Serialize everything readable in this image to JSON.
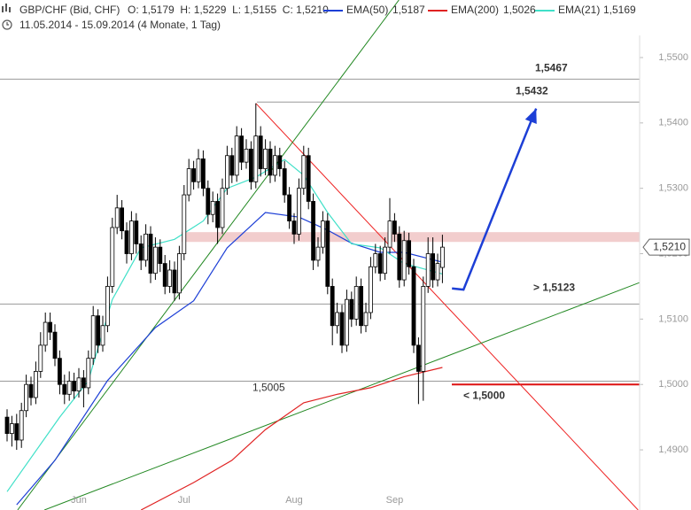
{
  "chart_data": {
    "type": "candlestick",
    "title": "GBP/CHF (Bid, CHF)",
    "quote": "O: 1,5179  H: 1,5229  L: 1,5155  C: 1,5210",
    "subtitle": "11.05.2014 - 15.09.2014 (4 Monate, 1 Tag)",
    "categories": [
      null,
      null,
      null,
      null,
      null,
      null,
      null,
      null,
      null,
      null,
      null,
      null,
      null,
      null,
      null,
      "Jun",
      null,
      null,
      null,
      null,
      null,
      null,
      null,
      null,
      null,
      null,
      null,
      null,
      null,
      null,
      null,
      null,
      null,
      null,
      null,
      null,
      null,
      "Jul",
      null,
      null,
      null,
      null,
      null,
      null,
      null,
      null,
      null,
      null,
      null,
      null,
      null,
      null,
      null,
      null,
      null,
      null,
      null,
      null,
      null,
      null,
      "Aug",
      null,
      null,
      null,
      null,
      null,
      null,
      null,
      null,
      null,
      null,
      null,
      null,
      null,
      null,
      null,
      null,
      null,
      null,
      null,
      null,
      "Sep",
      null,
      null,
      null,
      null,
      null,
      null,
      null,
      null,
      null,
      null
    ],
    "open": [
      1.495,
      1.4925,
      1.494,
      1.4915,
      1.496,
      1.5,
      1.498,
      1.502,
      1.506,
      1.5095,
      1.508,
      1.504,
      1.5,
      1.4985,
      1.5005,
      1.499,
      1.501,
      1.4995,
      1.504,
      1.5105,
      1.506,
      1.509,
      1.515,
      1.524,
      1.527,
      1.5235,
      1.52,
      1.525,
      1.5215,
      1.519,
      1.523,
      1.517,
      1.521,
      1.5185,
      1.515,
      1.5175,
      1.514,
      1.52,
      1.529,
      1.533,
      1.531,
      1.5345,
      1.53,
      1.526,
      1.528,
      1.524,
      1.53,
      1.535,
      1.532,
      1.538,
      1.534,
      1.536,
      1.531,
      1.538,
      1.533,
      1.536,
      1.532,
      1.535,
      1.533,
      1.529,
      1.525,
      1.523,
      1.53,
      1.535,
      1.528,
      1.519,
      1.521,
      1.525,
      1.515,
      1.509,
      1.511,
      1.506,
      1.513,
      1.51,
      1.515,
      1.509,
      1.511,
      1.518,
      1.52,
      1.517,
      1.521,
      1.525,
      1.523,
      1.516,
      1.522,
      1.518,
      1.506,
      1.502,
      1.515,
      1.52,
      1.516,
      1.5179
    ],
    "high": [
      1.4962,
      1.4952,
      1.4955,
      1.4972,
      1.5015,
      1.5012,
      1.5035,
      1.508,
      1.511,
      1.511,
      1.5092,
      1.5052,
      1.5015,
      1.502,
      1.5018,
      1.5025,
      1.5022,
      1.5052,
      1.512,
      1.5115,
      1.5105,
      1.5165,
      1.5255,
      1.529,
      1.5282,
      1.5248,
      1.5265,
      1.5262,
      1.5228,
      1.5245,
      1.5242,
      1.5225,
      1.5222,
      1.5198,
      1.519,
      1.5188,
      1.5212,
      1.5305,
      1.5345,
      1.5342,
      1.536,
      1.5358,
      1.5312,
      1.5295,
      1.5292,
      1.5315,
      1.5365,
      1.5362,
      1.5395,
      1.5392,
      1.5375,
      1.5372,
      1.543,
      1.5395,
      1.5375,
      1.5372,
      1.5365,
      1.5362,
      1.5342,
      1.5302,
      1.5262,
      1.5315,
      1.5365,
      1.5362,
      1.5292,
      1.5225,
      1.5265,
      1.5262,
      1.5162,
      1.5125,
      1.5122,
      1.5145,
      1.5142,
      1.5165,
      1.5162,
      1.5125,
      1.5195,
      1.5215,
      1.5212,
      1.5225,
      1.5285,
      1.5262,
      1.5242,
      1.5235,
      1.5232,
      1.5192,
      1.5072,
      1.5165,
      1.5225,
      1.5225,
      1.52,
      1.5229
    ],
    "low": [
      1.4913,
      1.4905,
      1.49,
      1.4903,
      1.495,
      1.4968,
      1.497,
      1.501,
      1.505,
      1.5068,
      1.5028,
      1.4985,
      1.497,
      1.4975,
      1.4978,
      1.498,
      1.4965,
      1.4985,
      1.503,
      1.5048,
      1.505,
      1.508,
      1.514,
      1.523,
      1.5222,
      1.5185,
      1.519,
      1.52,
      1.5175,
      1.518,
      1.5155,
      1.516,
      1.5172,
      1.5138,
      1.514,
      1.5128,
      1.513,
      1.519,
      1.528,
      1.5298,
      1.53,
      1.5288,
      1.5245,
      1.5248,
      1.5215,
      1.523,
      1.529,
      1.5308,
      1.531,
      1.5328,
      1.533,
      1.5298,
      1.53,
      1.5318,
      1.532,
      1.5308,
      1.531,
      1.5318,
      1.5278,
      1.5238,
      1.5215,
      1.522,
      1.529,
      1.5268,
      1.5175,
      1.518,
      1.52,
      1.5138,
      1.506,
      1.5078,
      1.5048,
      1.505,
      1.5088,
      1.509,
      1.5078,
      1.508,
      1.51,
      1.517,
      1.5158,
      1.516,
      1.52,
      1.5218,
      1.5148,
      1.515,
      1.5168,
      1.5048,
      1.497,
      1.4975,
      1.514,
      1.5148,
      1.515,
      1.5155
    ],
    "close": [
      1.4925,
      1.494,
      1.4915,
      1.496,
      1.5,
      1.498,
      1.502,
      1.506,
      1.5095,
      1.508,
      1.504,
      1.5,
      1.4985,
      1.5005,
      1.499,
      1.501,
      1.4995,
      1.504,
      1.5105,
      1.506,
      1.509,
      1.515,
      1.524,
      1.527,
      1.5235,
      1.52,
      1.525,
      1.5215,
      1.519,
      1.523,
      1.517,
      1.521,
      1.5185,
      1.515,
      1.5175,
      1.514,
      1.52,
      1.529,
      1.533,
      1.531,
      1.5345,
      1.53,
      1.526,
      1.528,
      1.524,
      1.53,
      1.535,
      1.532,
      1.538,
      1.534,
      1.536,
      1.531,
      1.538,
      1.533,
      1.536,
      1.532,
      1.535,
      1.533,
      1.529,
      1.525,
      1.523,
      1.53,
      1.535,
      1.528,
      1.519,
      1.521,
      1.525,
      1.515,
      1.509,
      1.511,
      1.506,
      1.513,
      1.51,
      1.515,
      1.509,
      1.511,
      1.518,
      1.52,
      1.517,
      1.521,
      1.525,
      1.523,
      1.516,
      1.522,
      1.518,
      1.506,
      1.502,
      1.515,
      1.52,
      1.516,
      1.5185,
      1.521
    ],
    "up_color": "#ffffff",
    "down_color": "#000000",
    "series": [
      {
        "name": "EMA(50)",
        "color": "#1d3fd6",
        "last_label": "1,5187",
        "x": [
          2,
          10,
          21,
          31,
          39,
          46,
          54,
          61,
          67,
          72,
          78,
          83,
          91
        ],
        "values": [
          1.4816,
          1.4884,
          1.5006,
          1.5087,
          1.5128,
          1.5209,
          1.5263,
          1.5256,
          1.5236,
          1.5216,
          1.5202,
          1.5202,
          1.5187
        ]
      },
      {
        "name": "EMA(200)",
        "color": "#e02222",
        "last_label": "1,5026",
        "x": [
          28,
          39,
          47,
          54,
          62,
          69,
          76,
          83,
          91
        ],
        "values": [
          1.4808,
          1.485,
          1.4884,
          1.4931,
          1.4972,
          1.4985,
          1.4995,
          1.5012,
          1.5026
        ]
      },
      {
        "name": "EMA(21)",
        "color": "#40e0c8",
        "last_label": "1,5169",
        "x": [
          0,
          11,
          17,
          22,
          28,
          35,
          41,
          46,
          52,
          58,
          62,
          67,
          72,
          78,
          83,
          91
        ],
        "values": [
          1.4836,
          1.495,
          1.5006,
          1.513,
          1.5209,
          1.5222,
          1.525,
          1.53,
          1.5317,
          1.5344,
          1.532,
          1.5263,
          1.5215,
          1.5209,
          1.5185,
          1.5169
        ]
      }
    ],
    "ylim": [
      1.4808,
      1.5588
    ],
    "yticks": [
      {
        "value": 1.49,
        "label": "1,4900"
      },
      {
        "value": 1.5,
        "label": "1,5000"
      },
      {
        "value": 1.51,
        "label": "1,5100"
      },
      {
        "value": 1.52,
        "label": "1,5200"
      },
      {
        "value": 1.53,
        "label": "1,5300"
      },
      {
        "value": 1.54,
        "label": "1,5400"
      },
      {
        "value": 1.55,
        "label": "1,5500"
      }
    ],
    "last_price": {
      "value": 1.521,
      "label": "1,5210"
    },
    "band": {
      "values": [
        1.5218,
        1.5233
      ],
      "color": "#f0c4c4"
    },
    "levels": [
      {
        "value": 1.5467,
        "label": "1,5467",
        "color": "#1d3fd6"
      },
      {
        "value": 1.5432,
        "label": "1,5432",
        "color": "#1d3fd6"
      },
      {
        "value": 1.5123,
        "label": "> 1,5123",
        "color": "#1d3fd6"
      },
      {
        "value": 1.5005,
        "label": "1,5005",
        "color": "#aaaaaa"
      },
      {
        "value": 1.5,
        "label": "< 1,5000",
        "color": "#dd1111"
      }
    ],
    "trendlines": [
      {
        "color": "#ee2222",
        "x": [
          52,
          131.9
        ],
        "values": [
          1.543,
          1.4808
        ]
      },
      {
        "color": "#228822",
        "x": [
          2.2,
          81.9
        ],
        "values": [
          1.4808,
          1.5588
        ]
      },
      {
        "color": "#228822",
        "x": [
          7.8,
          143
        ],
        "values": [
          1.4808,
          1.5186
        ]
      }
    ],
    "arrow": {
      "color": "#1d3fd6",
      "x": [
        93,
        95.4,
        110.6
      ],
      "values": [
        1.5147,
        1.5145,
        1.5422
      ]
    }
  }
}
